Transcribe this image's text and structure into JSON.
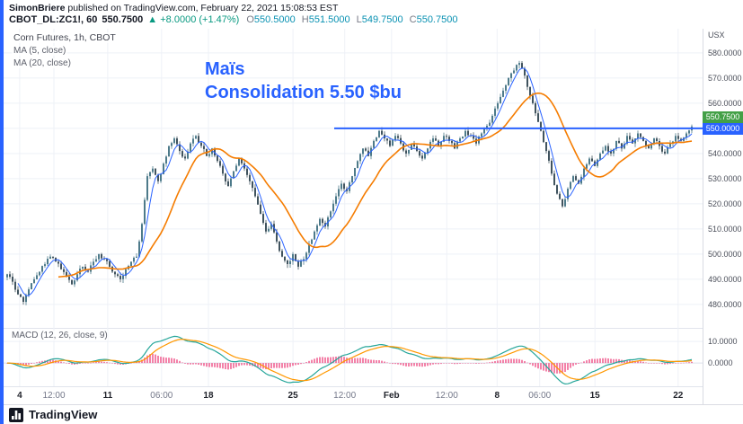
{
  "header": {
    "publisher": "SimonBriere",
    "publish_text": " published on TradingView.com, February 22, 2021 15:08:53 EST"
  },
  "symbol_bar": {
    "symbol": "CBOT_DL:ZC1!, 60",
    "last": "550.7500",
    "change": "▲ +8.0000 (+1.47%)",
    "ohlc": [
      {
        "k": "O",
        "v": "550.5000"
      },
      {
        "k": "H",
        "v": "551.5000"
      },
      {
        "k": "L",
        "v": "549.7500"
      },
      {
        "k": "C",
        "v": "550.7500"
      }
    ]
  },
  "legend": {
    "title": "Corn Futures, 1h, CBOT",
    "ma5": "MA (5, close)",
    "ma20": "MA (20, close)",
    "macd": "MACD (12, 26, close, 9)"
  },
  "annotation": {
    "line1": "Maïs",
    "line2": "Consolidation 5.50 $bu"
  },
  "price_scale": {
    "unit": "USX",
    "current_badge": "550.7500",
    "line_badge": "550.0000"
  },
  "footer": {
    "brand": "TradingView"
  },
  "colors": {
    "accent": "#2962ff",
    "up": "#089981",
    "ohlc_value": "#0891b2",
    "candle_up": "#4d7a8a",
    "candle_down": "#40535e",
    "ma5": "#2962ff",
    "ma20": "#f57c00",
    "macd_line": "#26a69a",
    "macd_signal": "#ff9800",
    "macd_hist": "#f06292",
    "badge_up": "#43a047"
  },
  "chart_data": {
    "type": "candlestick",
    "title": "Corn Futures, 1h, CBOT",
    "symbol": "CBOT_DL:ZC1!",
    "interval": "1h",
    "price_unit": "USX",
    "ylim": [
      470.7,
      589.6
    ],
    "y_axis_labels": [
      "580.0000",
      "570.0000",
      "560.0000",
      "550.0000",
      "540.0000",
      "530.0000",
      "520.0000",
      "510.0000",
      "500.0000",
      "490.0000",
      "480.0000"
    ],
    "x_axis": [
      {
        "label": "4",
        "pct": 2.3,
        "em": true
      },
      {
        "label": "12:00",
        "pct": 7.2
      },
      {
        "label": "11",
        "pct": 14.9,
        "em": true
      },
      {
        "label": "06:00",
        "pct": 22.6
      },
      {
        "label": "18",
        "pct": 29.3,
        "em": true
      },
      {
        "label": "25",
        "pct": 41.4,
        "em": true
      },
      {
        "label": "12:00",
        "pct": 48.8
      },
      {
        "label": "Feb",
        "pct": 55.5,
        "em": true
      },
      {
        "label": "12:00",
        "pct": 63.4
      },
      {
        "label": "8",
        "pct": 70.6,
        "em": true
      },
      {
        "label": "06:00",
        "pct": 76.7
      },
      {
        "label": "15",
        "pct": 84.6,
        "em": true
      },
      {
        "label": "22",
        "pct": 96.5,
        "em": true
      }
    ],
    "closes": [
      492,
      489,
      484,
      481,
      486,
      490,
      493,
      496,
      499,
      497,
      494,
      491,
      488,
      492,
      495,
      493,
      497,
      500,
      498,
      495,
      492,
      490,
      494,
      497,
      499,
      512,
      531,
      534,
      529,
      536,
      543,
      546,
      541,
      538,
      544,
      547,
      543,
      539,
      542,
      537,
      532,
      527,
      533,
      538,
      534,
      529,
      523,
      516,
      509,
      512,
      505,
      499,
      496,
      500,
      495,
      498,
      504,
      509,
      514,
      511,
      517,
      523,
      528,
      525,
      531,
      537,
      542,
      539,
      545,
      549,
      546,
      543,
      547,
      544,
      540,
      544,
      541,
      538,
      542,
      546,
      543,
      547,
      545,
      542,
      546,
      549,
      547,
      544,
      548,
      551,
      555,
      560,
      565,
      570,
      573,
      576,
      571,
      563,
      556,
      549,
      541,
      532,
      524,
      519,
      526,
      531,
      528,
      534,
      538,
      535,
      540,
      543,
      540,
      545,
      542,
      547,
      544,
      548,
      545,
      542,
      546,
      543,
      540,
      544,
      547,
      545,
      548,
      550.75
    ],
    "hline": 550.0,
    "last_price": 550.75,
    "ohlc_last": {
      "o": 550.5,
      "h": 551.5,
      "l": 549.75,
      "c": 550.75
    },
    "overlays": [
      {
        "name": "MA",
        "length": 5,
        "source": "close"
      },
      {
        "name": "MA",
        "length": 20,
        "source": "close"
      }
    ],
    "macd": {
      "fast": 12,
      "slow": 26,
      "source": "close",
      "signal": 9,
      "scale_labels": [
        "10.0000",
        "0.0000"
      ]
    }
  }
}
